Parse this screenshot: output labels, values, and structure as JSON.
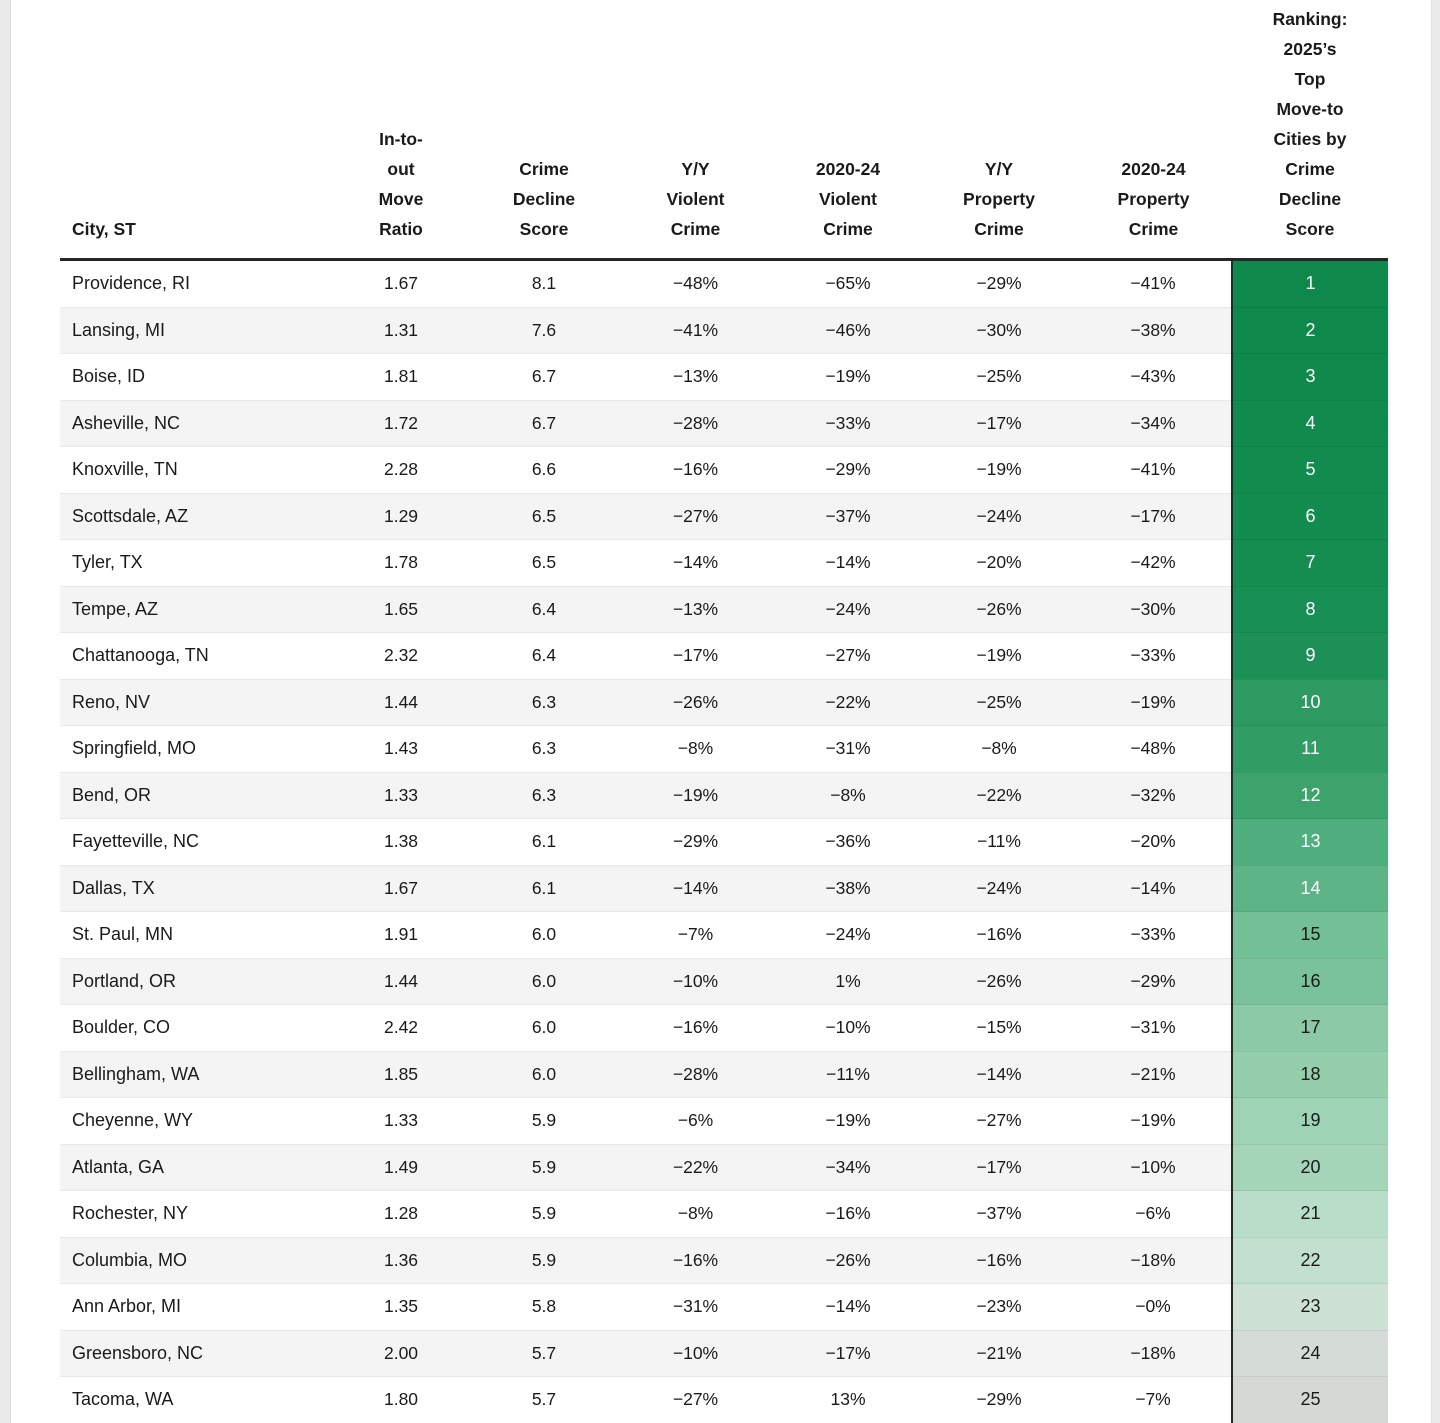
{
  "table": {
    "title_semantic": "2025 top move-to cities by crime decline score",
    "columns": [
      {
        "key": "city",
        "label": "City, ST"
      },
      {
        "key": "move_ratio",
        "label": "In-to-\nout\nMove\nRatio"
      },
      {
        "key": "score",
        "label": "Crime\nDecline\nScore"
      },
      {
        "key": "yy_violent",
        "label": "Y/Y\nViolent\nCrime"
      },
      {
        "key": "violent_2020_24",
        "label": "2020-24\nViolent\nCrime"
      },
      {
        "key": "yy_property",
        "label": "Y/Y\nProperty\nCrime"
      },
      {
        "key": "property_2020_24",
        "label": "2020-24\nProperty\nCrime"
      },
      {
        "key": "rank",
        "label": "Ranking:\n2025’s\nTop\nMove-to\nCities by\nCrime\nDecline\nScore"
      }
    ],
    "rows": [
      {
        "city": "Providence, RI",
        "move_ratio": "1.67",
        "score": "8.1",
        "yy_violent": "−48%",
        "violent_2020_24": "−65%",
        "yy_property": "−29%",
        "property_2020_24": "−41%",
        "rank": "1",
        "rank_bg": "#0e894b",
        "rank_fg": "#ffffff"
      },
      {
        "city": "Lansing, MI",
        "move_ratio": "1.31",
        "score": "7.6",
        "yy_violent": "−41%",
        "violent_2020_24": "−46%",
        "yy_property": "−30%",
        "property_2020_24": "−38%",
        "rank": "2",
        "rank_bg": "#0e894b",
        "rank_fg": "#ffffff"
      },
      {
        "city": "Boise, ID",
        "move_ratio": "1.81",
        "score": "6.7",
        "yy_violent": "−13%",
        "violent_2020_24": "−19%",
        "yy_property": "−25%",
        "property_2020_24": "−43%",
        "rank": "3",
        "rank_bg": "#0f8a4c",
        "rank_fg": "#ffffff"
      },
      {
        "city": "Asheville, NC",
        "move_ratio": "1.72",
        "score": "6.7",
        "yy_violent": "−28%",
        "violent_2020_24": "−33%",
        "yy_property": "−17%",
        "property_2020_24": "−34%",
        "rank": "4",
        "rank_bg": "#108b4d",
        "rank_fg": "#ffffff"
      },
      {
        "city": "Knoxville, TN",
        "move_ratio": "2.28",
        "score": "6.6",
        "yy_violent": "−16%",
        "violent_2020_24": "−29%",
        "yy_property": "−19%",
        "property_2020_24": "−41%",
        "rank": "5",
        "rank_bg": "#118b4e",
        "rank_fg": "#ffffff"
      },
      {
        "city": "Scottsdale, AZ",
        "move_ratio": "1.29",
        "score": "6.5",
        "yy_violent": "−27%",
        "violent_2020_24": "−37%",
        "yy_property": "−24%",
        "property_2020_24": "−17%",
        "rank": "6",
        "rank_bg": "#128c4f",
        "rank_fg": "#ffffff"
      },
      {
        "city": "Tyler, TX",
        "move_ratio": "1.78",
        "score": "6.5",
        "yy_violent": "−14%",
        "violent_2020_24": "−14%",
        "yy_property": "−20%",
        "property_2020_24": "−42%",
        "rank": "7",
        "rank_bg": "#158d51",
        "rank_fg": "#ffffff"
      },
      {
        "city": "Tempe, AZ",
        "move_ratio": "1.65",
        "score": "6.4",
        "yy_violent": "−13%",
        "violent_2020_24": "−24%",
        "yy_property": "−26%",
        "property_2020_24": "−30%",
        "rank": "8",
        "rank_bg": "#178e53",
        "rank_fg": "#ffffff"
      },
      {
        "city": "Chattanooga, TN",
        "move_ratio": "2.32",
        "score": "6.4",
        "yy_violent": "−17%",
        "violent_2020_24": "−27%",
        "yy_property": "−19%",
        "property_2020_24": "−33%",
        "rank": "9",
        "rank_bg": "#1d9057",
        "rank_fg": "#ffffff"
      },
      {
        "city": "Reno, NV",
        "move_ratio": "1.44",
        "score": "6.3",
        "yy_violent": "−26%",
        "violent_2020_24": "−22%",
        "yy_property": "−25%",
        "property_2020_24": "−19%",
        "rank": "10",
        "rank_bg": "#2d9a62",
        "rank_fg": "#ffffff"
      },
      {
        "city": "Springfield, MO",
        "move_ratio": "1.43",
        "score": "6.3",
        "yy_violent": "−8%",
        "violent_2020_24": "−31%",
        "yy_property": "−8%",
        "property_2020_24": "−48%",
        "rank": "11",
        "rank_bg": "#319c64",
        "rank_fg": "#ffffff"
      },
      {
        "city": "Bend, OR",
        "move_ratio": "1.33",
        "score": "6.3",
        "yy_violent": "−19%",
        "violent_2020_24": "−8%",
        "yy_property": "−22%",
        "property_2020_24": "−32%",
        "rank": "12",
        "rank_bg": "#3ba36b",
        "rank_fg": "#ffffff"
      },
      {
        "city": "Fayetteville, NC",
        "move_ratio": "1.38",
        "score": "6.1",
        "yy_violent": "−29%",
        "violent_2020_24": "−36%",
        "yy_property": "−11%",
        "property_2020_24": "−20%",
        "rank": "13",
        "rank_bg": "#50af7e",
        "rank_fg": "#ffffff"
      },
      {
        "city": "Dallas, TX",
        "move_ratio": "1.67",
        "score": "6.1",
        "yy_violent": "−14%",
        "violent_2020_24": "−38%",
        "yy_property": "−24%",
        "property_2020_24": "−14%",
        "rank": "14",
        "rank_bg": "#5cb487",
        "rank_fg": "#ffffff"
      },
      {
        "city": "St. Paul, MN",
        "move_ratio": "1.91",
        "score": "6.0",
        "yy_violent": "−7%",
        "violent_2020_24": "−24%",
        "yy_property": "−16%",
        "property_2020_24": "−33%",
        "rank": "15",
        "rank_bg": "#73c097",
        "rank_fg": "#1a1a1a"
      },
      {
        "city": "Portland, OR",
        "move_ratio": "1.44",
        "score": "6.0",
        "yy_violent": "−10%",
        "violent_2020_24": "1%",
        "yy_property": "−26%",
        "property_2020_24": "−29%",
        "rank": "16",
        "rank_bg": "#7ac29b",
        "rank_fg": "#1a1a1a"
      },
      {
        "city": "Boulder, CO",
        "move_ratio": "2.42",
        "score": "6.0",
        "yy_violent": "−16%",
        "violent_2020_24": "−10%",
        "yy_property": "−15%",
        "property_2020_24": "−31%",
        "rank": "17",
        "rank_bg": "#8bc9a7",
        "rank_fg": "#1a1a1a"
      },
      {
        "city": "Bellingham, WA",
        "move_ratio": "1.85",
        "score": "6.0",
        "yy_violent": "−28%",
        "violent_2020_24": "−11%",
        "yy_property": "−14%",
        "property_2020_24": "−21%",
        "rank": "18",
        "rank_bg": "#95cead",
        "rank_fg": "#1a1a1a"
      },
      {
        "city": "Cheyenne, WY",
        "move_ratio": "1.33",
        "score": "5.9",
        "yy_violent": "−6%",
        "violent_2020_24": "−19%",
        "yy_property": "−27%",
        "property_2020_24": "−19%",
        "rank": "19",
        "rank_bg": "#9fd3b5",
        "rank_fg": "#1a1a1a"
      },
      {
        "city": "Atlanta, GA",
        "move_ratio": "1.49",
        "score": "5.9",
        "yy_violent": "−22%",
        "violent_2020_24": "−34%",
        "yy_property": "−17%",
        "property_2020_24": "−10%",
        "rank": "20",
        "rank_bg": "#a4d5b9",
        "rank_fg": "#1a1a1a"
      },
      {
        "city": "Rochester, NY",
        "move_ratio": "1.28",
        "score": "5.9",
        "yy_violent": "−8%",
        "violent_2020_24": "−16%",
        "yy_property": "−37%",
        "property_2020_24": "−6%",
        "rank": "21",
        "rank_bg": "#b8ddc8",
        "rank_fg": "#1a1a1a"
      },
      {
        "city": "Columbia, MO",
        "move_ratio": "1.36",
        "score": "5.9",
        "yy_violent": "−16%",
        "violent_2020_24": "−26%",
        "yy_property": "−16%",
        "property_2020_24": "−18%",
        "rank": "22",
        "rank_bg": "#c2e0cf",
        "rank_fg": "#1a1a1a"
      },
      {
        "city": "Ann Arbor, MI",
        "move_ratio": "1.35",
        "score": "5.8",
        "yy_violent": "−31%",
        "violent_2020_24": "−14%",
        "yy_property": "−23%",
        "property_2020_24": "−0%",
        "rank": "23",
        "rank_bg": "#cde2d5",
        "rank_fg": "#1a1a1a"
      },
      {
        "city": "Greensboro, NC",
        "move_ratio": "2.00",
        "score": "5.7",
        "yy_violent": "−10%",
        "violent_2020_24": "−17%",
        "yy_property": "−21%",
        "property_2020_24": "−18%",
        "rank": "24",
        "rank_bg": "#d5dcd8",
        "rank_fg": "#1a1a1a"
      },
      {
        "city": "Tacoma, WA",
        "move_ratio": "1.80",
        "score": "5.7",
        "yy_violent": "−27%",
        "violent_2020_24": "13%",
        "yy_property": "−29%",
        "property_2020_24": "−7%",
        "rank": "25",
        "rank_bg": "#d5d9d6",
        "rank_fg": "#1a1a1a"
      }
    ],
    "colors": {
      "header_rule": "#262626",
      "rank_column_border": "#262626",
      "row_alt_bg": "#f4f4f4",
      "text": "#1a1a1a",
      "rank_green_dark": "#0e894b",
      "rank_green_light": "#d5d9d6"
    }
  }
}
